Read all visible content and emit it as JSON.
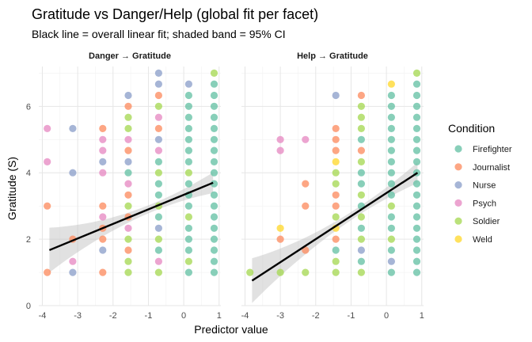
{
  "chart_data": {
    "type": "scatter",
    "title": "Gratitude vs Danger/Help (global fit per facet)",
    "subtitle": "Black line = overall linear fit; shaded band = 95% CI",
    "xlabel": "Predictor value",
    "ylabel": "Gratitude (S)",
    "xlim": [
      -4.1,
      1.05
    ],
    "ylim": [
      0,
      7.2
    ],
    "x_ticks": [
      -4,
      -3,
      -2,
      -1,
      0,
      1
    ],
    "y_ticks": [
      0,
      2,
      4,
      6
    ],
    "legend": {
      "title": "Condition",
      "placement": "right",
      "entries": [
        {
          "name": "Firefighter",
          "color": "#66c2a5"
        },
        {
          "name": "Journalist",
          "color": "#fc8d62"
        },
        {
          "name": "Nurse",
          "color": "#8da0cb"
        },
        {
          "name": "Psych",
          "color": "#e78ac3"
        },
        {
          "name": "Soldier",
          "color": "#a6d854"
        },
        {
          "name": "Weld",
          "color": "#ffd92f"
        }
      ]
    },
    "facets": [
      {
        "label": "Danger → Gratitude",
        "fit": {
          "x0": -3.8,
          "y0": 1.67,
          "x1": 0.83,
          "y1": 3.7
        },
        "points": [
          {
            "x": -3.86,
            "y": 1.0,
            "c": "Journalist"
          },
          {
            "x": -3.86,
            "y": 3.0,
            "c": "Journalist"
          },
          {
            "x": -3.86,
            "y": 4.33,
            "c": "Psych"
          },
          {
            "x": -3.86,
            "y": 5.33,
            "c": "Psych"
          },
          {
            "x": -3.14,
            "y": 1.0,
            "c": "Nurse"
          },
          {
            "x": -3.14,
            "y": 1.33,
            "c": "Psych"
          },
          {
            "x": -3.14,
            "y": 2.0,
            "c": "Journalist"
          },
          {
            "x": -3.14,
            "y": 4.0,
            "c": "Nurse"
          },
          {
            "x": -3.14,
            "y": 5.33,
            "c": "Nurse"
          },
          {
            "x": -2.29,
            "y": 1.0,
            "c": "Journalist"
          },
          {
            "x": -2.29,
            "y": 1.67,
            "c": "Nurse"
          },
          {
            "x": -2.29,
            "y": 2.0,
            "c": "Journalist"
          },
          {
            "x": -2.29,
            "y": 2.33,
            "c": "Journalist"
          },
          {
            "x": -2.29,
            "y": 2.67,
            "c": "Psych"
          },
          {
            "x": -2.29,
            "y": 3.0,
            "c": "Journalist"
          },
          {
            "x": -2.29,
            "y": 4.0,
            "c": "Psych"
          },
          {
            "x": -2.29,
            "y": 4.33,
            "c": "Nurse"
          },
          {
            "x": -2.29,
            "y": 4.67,
            "c": "Psych"
          },
          {
            "x": -2.29,
            "y": 5.0,
            "c": "Psych"
          },
          {
            "x": -2.29,
            "y": 5.33,
            "c": "Journalist"
          },
          {
            "x": -1.57,
            "y": 1.0,
            "c": "Soldier"
          },
          {
            "x": -1.57,
            "y": 1.33,
            "c": "Soldier"
          },
          {
            "x": -1.57,
            "y": 1.67,
            "c": "Journalist"
          },
          {
            "x": -1.57,
            "y": 2.0,
            "c": "Soldier"
          },
          {
            "x": -1.57,
            "y": 2.33,
            "c": "Psych"
          },
          {
            "x": -1.57,
            "y": 2.67,
            "c": "Journalist"
          },
          {
            "x": -1.57,
            "y": 3.0,
            "c": "Soldier"
          },
          {
            "x": -1.57,
            "y": 3.33,
            "c": "Journalist"
          },
          {
            "x": -1.57,
            "y": 3.67,
            "c": "Psych"
          },
          {
            "x": -1.57,
            "y": 4.0,
            "c": "Firefighter"
          },
          {
            "x": -1.57,
            "y": 4.33,
            "c": "Nurse"
          },
          {
            "x": -1.57,
            "y": 4.67,
            "c": "Journalist"
          },
          {
            "x": -1.57,
            "y": 5.0,
            "c": "Psych"
          },
          {
            "x": -1.57,
            "y": 5.33,
            "c": "Soldier"
          },
          {
            "x": -1.57,
            "y": 5.67,
            "c": "Soldier"
          },
          {
            "x": -1.57,
            "y": 6.0,
            "c": "Journalist"
          },
          {
            "x": -1.57,
            "y": 6.33,
            "c": "Nurse"
          },
          {
            "x": -0.71,
            "y": 1.0,
            "c": "Soldier"
          },
          {
            "x": -0.71,
            "y": 1.33,
            "c": "Psych"
          },
          {
            "x": -0.71,
            "y": 1.67,
            "c": "Firefighter"
          },
          {
            "x": -0.71,
            "y": 2.0,
            "c": "Soldier"
          },
          {
            "x": -0.71,
            "y": 2.33,
            "c": "Nurse"
          },
          {
            "x": -0.71,
            "y": 2.67,
            "c": "Firefighter"
          },
          {
            "x": -0.71,
            "y": 3.0,
            "c": "Soldier"
          },
          {
            "x": -0.71,
            "y": 3.33,
            "c": "Firefighter"
          },
          {
            "x": -0.71,
            "y": 3.67,
            "c": "Firefighter"
          },
          {
            "x": -0.71,
            "y": 4.0,
            "c": "Soldier"
          },
          {
            "x": -0.71,
            "y": 4.33,
            "c": "Firefighter"
          },
          {
            "x": -0.71,
            "y": 4.67,
            "c": "Psych"
          },
          {
            "x": -0.71,
            "y": 5.0,
            "c": "Nurse"
          },
          {
            "x": -0.71,
            "y": 5.33,
            "c": "Journalist"
          },
          {
            "x": -0.71,
            "y": 5.67,
            "c": "Psych"
          },
          {
            "x": -0.71,
            "y": 6.0,
            "c": "Soldier"
          },
          {
            "x": -0.71,
            "y": 6.33,
            "c": "Journalist"
          },
          {
            "x": -0.71,
            "y": 6.67,
            "c": "Nurse"
          },
          {
            "x": -0.71,
            "y": 7.0,
            "c": "Nurse"
          },
          {
            "x": 0.14,
            "y": 1.0,
            "c": "Firefighter"
          },
          {
            "x": 0.14,
            "y": 1.33,
            "c": "Soldier"
          },
          {
            "x": 0.14,
            "y": 1.67,
            "c": "Firefighter"
          },
          {
            "x": 0.14,
            "y": 2.0,
            "c": "Firefighter"
          },
          {
            "x": 0.14,
            "y": 2.33,
            "c": "Firefighter"
          },
          {
            "x": 0.14,
            "y": 2.67,
            "c": "Soldier"
          },
          {
            "x": 0.14,
            "y": 3.0,
            "c": "Firefighter"
          },
          {
            "x": 0.14,
            "y": 3.33,
            "c": "Firefighter"
          },
          {
            "x": 0.14,
            "y": 3.67,
            "c": "Firefighter"
          },
          {
            "x": 0.14,
            "y": 4.0,
            "c": "Soldier"
          },
          {
            "x": 0.14,
            "y": 4.33,
            "c": "Firefighter"
          },
          {
            "x": 0.14,
            "y": 4.67,
            "c": "Firefighter"
          },
          {
            "x": 0.14,
            "y": 5.0,
            "c": "Firefighter"
          },
          {
            "x": 0.14,
            "y": 5.33,
            "c": "Firefighter"
          },
          {
            "x": 0.14,
            "y": 5.67,
            "c": "Firefighter"
          },
          {
            "x": 0.14,
            "y": 6.0,
            "c": "Firefighter"
          },
          {
            "x": 0.14,
            "y": 6.33,
            "c": "Firefighter"
          },
          {
            "x": 0.14,
            "y": 6.67,
            "c": "Nurse"
          },
          {
            "x": 0.86,
            "y": 1.0,
            "c": "Firefighter"
          },
          {
            "x": 0.86,
            "y": 1.33,
            "c": "Firefighter"
          },
          {
            "x": 0.86,
            "y": 1.67,
            "c": "Firefighter"
          },
          {
            "x": 0.86,
            "y": 2.0,
            "c": "Firefighter"
          },
          {
            "x": 0.86,
            "y": 2.33,
            "c": "Firefighter"
          },
          {
            "x": 0.86,
            "y": 2.67,
            "c": "Firefighter"
          },
          {
            "x": 0.86,
            "y": 3.0,
            "c": "Firefighter"
          },
          {
            "x": 0.86,
            "y": 3.33,
            "c": "Firefighter"
          },
          {
            "x": 0.86,
            "y": 3.67,
            "c": "Firefighter"
          },
          {
            "x": 0.86,
            "y": 4.0,
            "c": "Firefighter"
          },
          {
            "x": 0.86,
            "y": 4.33,
            "c": "Firefighter"
          },
          {
            "x": 0.86,
            "y": 4.67,
            "c": "Firefighter"
          },
          {
            "x": 0.86,
            "y": 5.0,
            "c": "Firefighter"
          },
          {
            "x": 0.86,
            "y": 5.33,
            "c": "Firefighter"
          },
          {
            "x": 0.86,
            "y": 5.67,
            "c": "Firefighter"
          },
          {
            "x": 0.86,
            "y": 6.0,
            "c": "Firefighter"
          },
          {
            "x": 0.86,
            "y": 6.33,
            "c": "Firefighter"
          },
          {
            "x": 0.86,
            "y": 6.67,
            "c": "Firefighter"
          },
          {
            "x": 0.86,
            "y": 7.0,
            "c": "Soldier"
          }
        ]
      },
      {
        "label": "Help → Gratitude",
        "fit": {
          "x0": -3.8,
          "y0": 0.75,
          "x1": 0.88,
          "y1": 4.0
        },
        "points": [
          {
            "x": -3.86,
            "y": 1.0,
            "c": "Soldier"
          },
          {
            "x": -3.0,
            "y": 1.0,
            "c": "Soldier"
          },
          {
            "x": -3.0,
            "y": 2.0,
            "c": "Journalist"
          },
          {
            "x": -3.0,
            "y": 2.33,
            "c": "Weld"
          },
          {
            "x": -3.0,
            "y": 4.67,
            "c": "Psych"
          },
          {
            "x": -3.0,
            "y": 5.0,
            "c": "Psych"
          },
          {
            "x": -2.29,
            "y": 1.0,
            "c": "Soldier"
          },
          {
            "x": -2.29,
            "y": 1.67,
            "c": "Journalist"
          },
          {
            "x": -2.29,
            "y": 3.0,
            "c": "Journalist"
          },
          {
            "x": -2.29,
            "y": 3.67,
            "c": "Journalist"
          },
          {
            "x": -2.29,
            "y": 5.0,
            "c": "Psych"
          },
          {
            "x": -1.43,
            "y": 1.0,
            "c": "Soldier"
          },
          {
            "x": -1.43,
            "y": 1.33,
            "c": "Soldier"
          },
          {
            "x": -1.43,
            "y": 1.67,
            "c": "Firefighter"
          },
          {
            "x": -1.43,
            "y": 2.0,
            "c": "Journalist"
          },
          {
            "x": -1.43,
            "y": 2.33,
            "c": "Weld"
          },
          {
            "x": -1.43,
            "y": 2.67,
            "c": "Soldier"
          },
          {
            "x": -1.43,
            "y": 3.0,
            "c": "Journalist"
          },
          {
            "x": -1.43,
            "y": 3.33,
            "c": "Journalist"
          },
          {
            "x": -1.43,
            "y": 3.67,
            "c": "Soldier"
          },
          {
            "x": -1.43,
            "y": 4.0,
            "c": "Soldier"
          },
          {
            "x": -1.43,
            "y": 4.33,
            "c": "Weld"
          },
          {
            "x": -1.43,
            "y": 4.67,
            "c": "Journalist"
          },
          {
            "x": -1.43,
            "y": 5.0,
            "c": "Journalist"
          },
          {
            "x": -1.43,
            "y": 5.33,
            "c": "Journalist"
          },
          {
            "x": -1.43,
            "y": 6.33,
            "c": "Nurse"
          },
          {
            "x": -0.71,
            "y": 1.0,
            "c": "Soldier"
          },
          {
            "x": -0.71,
            "y": 1.33,
            "c": "Firefighter"
          },
          {
            "x": -0.71,
            "y": 1.67,
            "c": "Nurse"
          },
          {
            "x": -0.71,
            "y": 2.0,
            "c": "Soldier"
          },
          {
            "x": -0.71,
            "y": 2.33,
            "c": "Firefighter"
          },
          {
            "x": -0.71,
            "y": 2.67,
            "c": "Soldier"
          },
          {
            "x": -0.71,
            "y": 3.0,
            "c": "Firefighter"
          },
          {
            "x": -0.71,
            "y": 3.33,
            "c": "Soldier"
          },
          {
            "x": -0.71,
            "y": 3.67,
            "c": "Firefighter"
          },
          {
            "x": -0.71,
            "y": 4.0,
            "c": "Firefighter"
          },
          {
            "x": -0.71,
            "y": 4.33,
            "c": "Soldier"
          },
          {
            "x": -0.71,
            "y": 4.67,
            "c": "Journalist"
          },
          {
            "x": -0.71,
            "y": 5.0,
            "c": "Firefighter"
          },
          {
            "x": -0.71,
            "y": 5.33,
            "c": "Soldier"
          },
          {
            "x": -0.71,
            "y": 5.67,
            "c": "Soldier"
          },
          {
            "x": -0.71,
            "y": 6.0,
            "c": "Soldier"
          },
          {
            "x": -0.71,
            "y": 6.33,
            "c": "Journalist"
          },
          {
            "x": 0.14,
            "y": 1.0,
            "c": "Firefighter"
          },
          {
            "x": 0.14,
            "y": 1.33,
            "c": "Nurse"
          },
          {
            "x": 0.14,
            "y": 1.67,
            "c": "Firefighter"
          },
          {
            "x": 0.14,
            "y": 2.0,
            "c": "Soldier"
          },
          {
            "x": 0.14,
            "y": 2.33,
            "c": "Firefighter"
          },
          {
            "x": 0.14,
            "y": 2.67,
            "c": "Firefighter"
          },
          {
            "x": 0.14,
            "y": 3.0,
            "c": "Soldier"
          },
          {
            "x": 0.14,
            "y": 3.33,
            "c": "Firefighter"
          },
          {
            "x": 0.14,
            "y": 3.67,
            "c": "Firefighter"
          },
          {
            "x": 0.14,
            "y": 4.0,
            "c": "Firefighter"
          },
          {
            "x": 0.14,
            "y": 4.33,
            "c": "Firefighter"
          },
          {
            "x": 0.14,
            "y": 4.67,
            "c": "Firefighter"
          },
          {
            "x": 0.14,
            "y": 5.0,
            "c": "Firefighter"
          },
          {
            "x": 0.14,
            "y": 5.33,
            "c": "Firefighter"
          },
          {
            "x": 0.14,
            "y": 5.67,
            "c": "Firefighter"
          },
          {
            "x": 0.14,
            "y": 6.0,
            "c": "Firefighter"
          },
          {
            "x": 0.14,
            "y": 6.33,
            "c": "Firefighter"
          },
          {
            "x": 0.14,
            "y": 6.67,
            "c": "Weld"
          },
          {
            "x": 0.86,
            "y": 1.0,
            "c": "Firefighter"
          },
          {
            "x": 0.86,
            "y": 1.33,
            "c": "Firefighter"
          },
          {
            "x": 0.86,
            "y": 1.67,
            "c": "Firefighter"
          },
          {
            "x": 0.86,
            "y": 2.0,
            "c": "Firefighter"
          },
          {
            "x": 0.86,
            "y": 2.33,
            "c": "Firefighter"
          },
          {
            "x": 0.86,
            "y": 2.67,
            "c": "Firefighter"
          },
          {
            "x": 0.86,
            "y": 3.0,
            "c": "Firefighter"
          },
          {
            "x": 0.86,
            "y": 3.33,
            "c": "Firefighter"
          },
          {
            "x": 0.86,
            "y": 3.67,
            "c": "Firefighter"
          },
          {
            "x": 0.86,
            "y": 4.0,
            "c": "Firefighter"
          },
          {
            "x": 0.86,
            "y": 4.33,
            "c": "Firefighter"
          },
          {
            "x": 0.86,
            "y": 4.67,
            "c": "Firefighter"
          },
          {
            "x": 0.86,
            "y": 5.0,
            "c": "Firefighter"
          },
          {
            "x": 0.86,
            "y": 5.33,
            "c": "Firefighter"
          },
          {
            "x": 0.86,
            "y": 5.67,
            "c": "Firefighter"
          },
          {
            "x": 0.86,
            "y": 6.0,
            "c": "Firefighter"
          },
          {
            "x": 0.86,
            "y": 6.33,
            "c": "Firefighter"
          },
          {
            "x": 0.86,
            "y": 6.67,
            "c": "Firefighter"
          },
          {
            "x": 0.86,
            "y": 7.0,
            "c": "Soldier"
          }
        ]
      }
    ]
  }
}
